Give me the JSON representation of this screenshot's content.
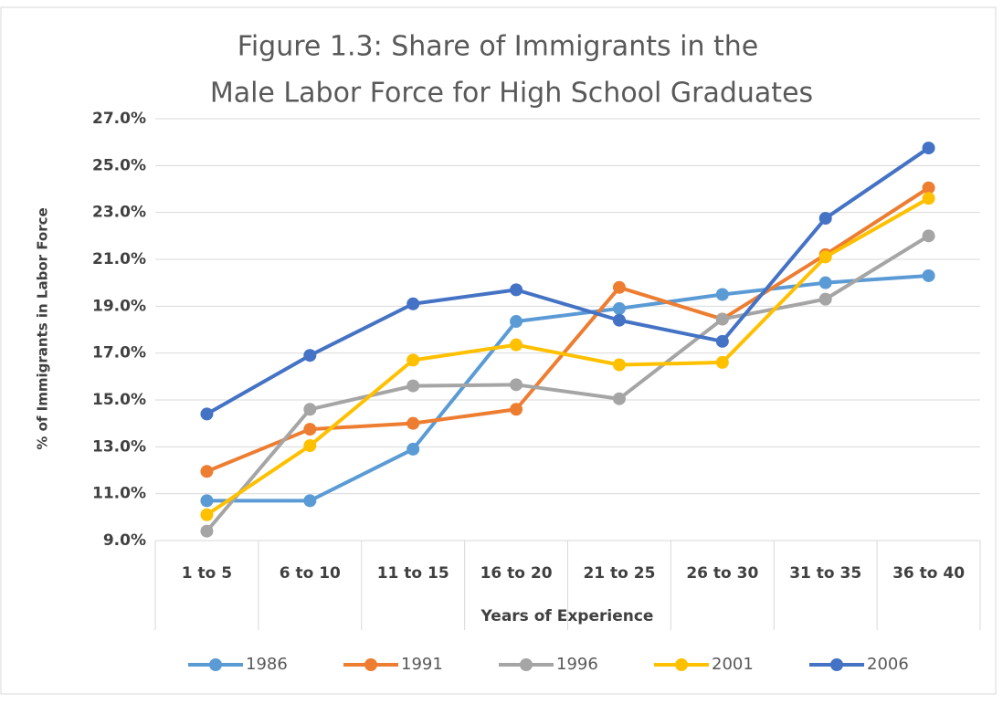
{
  "chart_data": {
    "type": "line",
    "title": [
      "Figure 1.3: Share of Immigrants in the",
      "Male Labor Force for High School Graduates"
    ],
    "x_label": "Years of Experience",
    "y_label": "% of Immigrants in Labor Force",
    "categories": [
      "1 to 5",
      "6 to 10",
      "11 to 15",
      "16 to 20",
      "21 to 25",
      "26 to 30",
      "31 to 35",
      "36 to 40"
    ],
    "series": [
      {
        "name": "1986",
        "color": "#5b9bd5",
        "values": [
          10.7,
          10.7,
          12.9,
          18.35,
          18.9,
          19.5,
          20.0,
          20.3
        ]
      },
      {
        "name": "1991",
        "color": "#ed7d31",
        "values": [
          11.95,
          13.75,
          14.0,
          14.6,
          19.8,
          18.45,
          21.2,
          24.05
        ]
      },
      {
        "name": "1996",
        "color": "#a5a5a5",
        "values": [
          9.4,
          14.6,
          15.6,
          15.65,
          15.05,
          18.45,
          19.3,
          22.0
        ]
      },
      {
        "name": "2001",
        "color": "#ffc000",
        "values": [
          10.1,
          13.05,
          16.7,
          17.35,
          16.5,
          16.6,
          21.1,
          23.6
        ]
      },
      {
        "name": "2006",
        "color": "#4472c4",
        "values": [
          14.4,
          16.9,
          19.1,
          19.7,
          18.4,
          17.5,
          22.75,
          25.75
        ]
      }
    ],
    "ylim": [
      9,
      27
    ],
    "yticks": [
      {
        "value": 9,
        "label": "9.0%"
      },
      {
        "value": 11,
        "label": "11.0%"
      },
      {
        "value": 13,
        "label": "13.0%"
      },
      {
        "value": 15,
        "label": "15.0%"
      },
      {
        "value": 17,
        "label": "17.0%"
      },
      {
        "value": 19,
        "label": "19.0%"
      },
      {
        "value": 21,
        "label": "21.0%"
      },
      {
        "value": 23,
        "label": "23.0%"
      },
      {
        "value": 25,
        "label": "25.0%"
      },
      {
        "value": 27,
        "label": "27.0%"
      }
    ],
    "grid": true,
    "legend": "bottom"
  }
}
